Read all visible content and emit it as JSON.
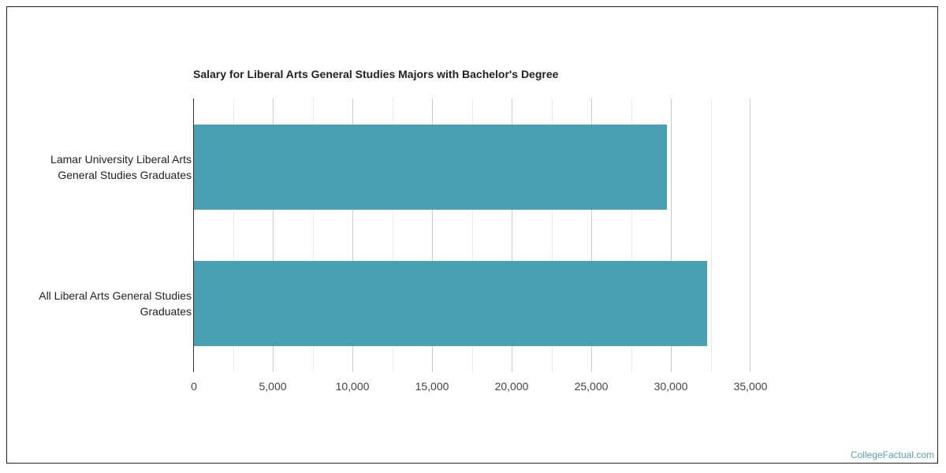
{
  "chart_data": {
    "type": "bar",
    "orientation": "horizontal",
    "title": "Salary for Liberal Arts General Studies Majors with Bachelor's Degree",
    "categories": [
      "Lamar University Liberal Arts General Studies Graduates",
      "All Liberal Arts General Studies Graduates"
    ],
    "values": [
      29750,
      32300
    ],
    "xlabel": "",
    "ylabel": "",
    "xlim": [
      0,
      35000
    ],
    "x_ticks": [
      "0",
      "5,000",
      "10,000",
      "15,000",
      "20,000",
      "25,000",
      "30,000",
      "35,000"
    ],
    "grid": true,
    "legend": null,
    "bar_color": "#4aa0b3"
  },
  "labels": {
    "cat1_line1": "Lamar University Liberal Arts",
    "cat1_line2": "General Studies Graduates",
    "cat2_line1": "All Liberal Arts General Studies",
    "cat2_line2": "Graduates"
  },
  "credit": "CollegeFactual.com"
}
